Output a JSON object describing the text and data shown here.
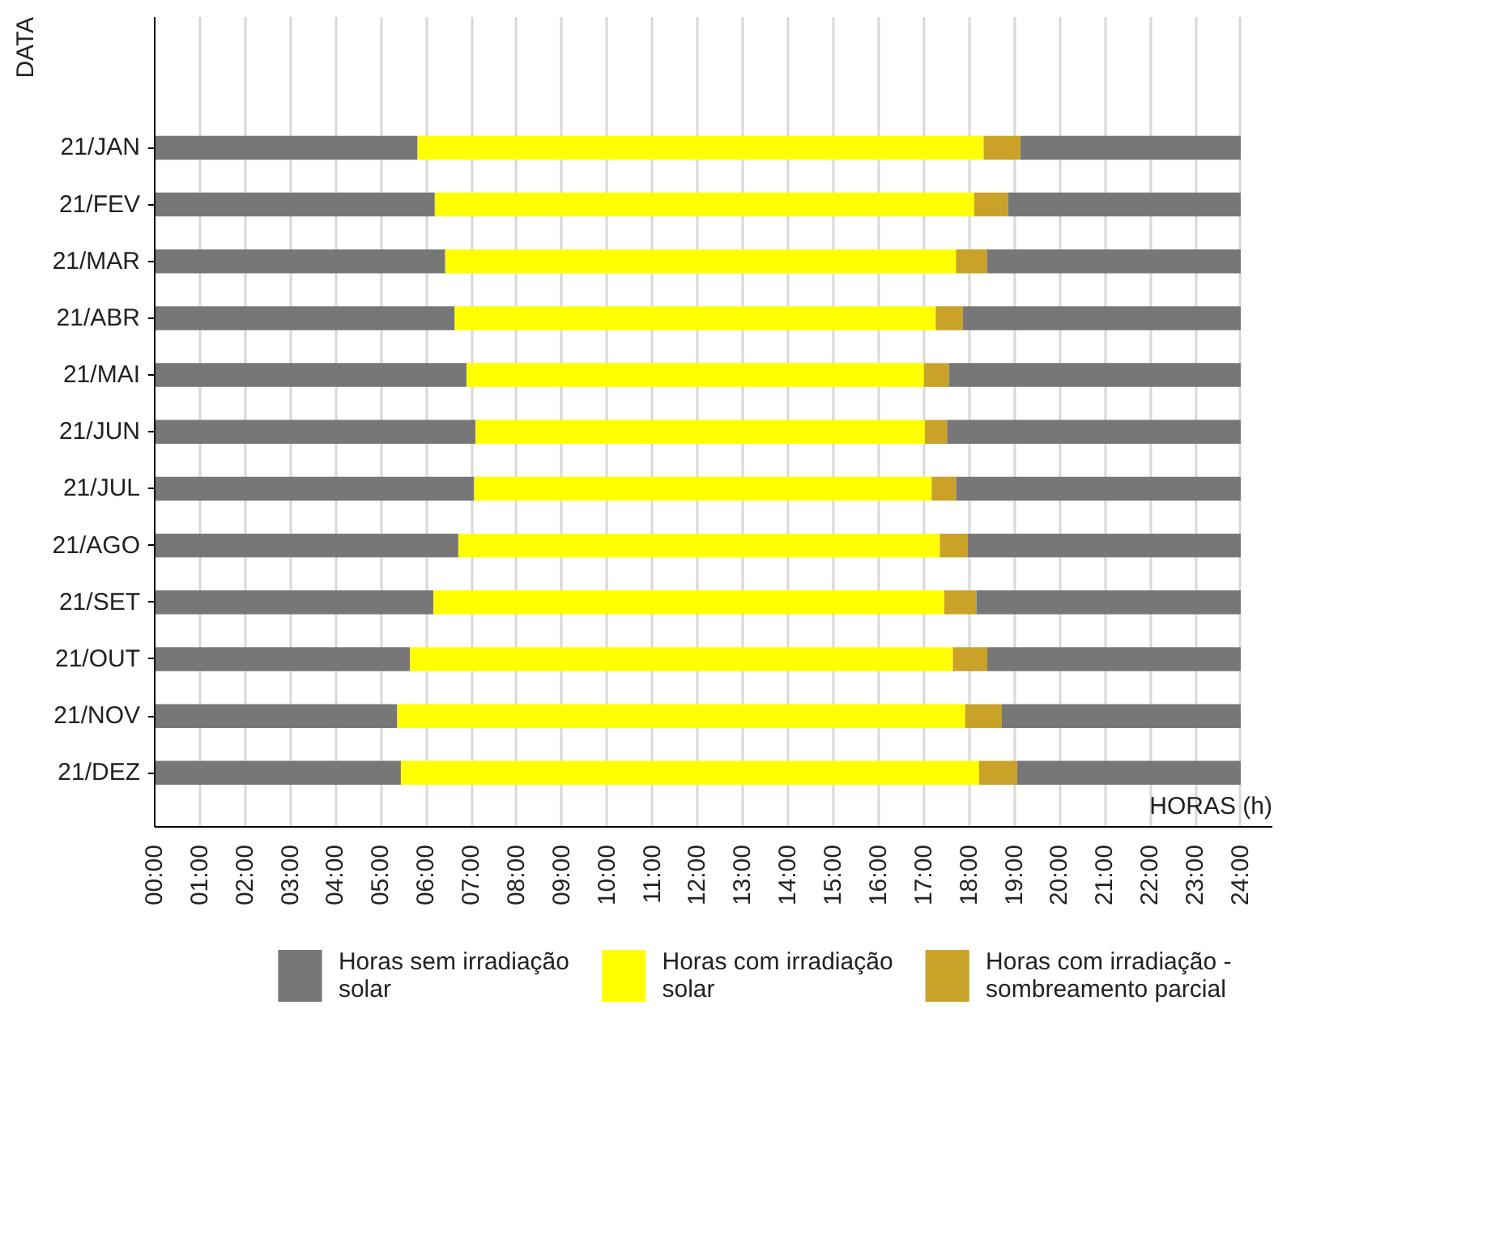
{
  "chart_data": {
    "type": "bar",
    "orientation": "horizontal",
    "stacked": true,
    "xlabel": "HORAS (h)",
    "ylabel": "DATA",
    "categories": [
      "21/JAN",
      "21/FEV",
      "21/MAR",
      "21/ABR",
      "21/MAI",
      "21/JUN",
      "21/JUL",
      "21/AGO",
      "21/SET",
      "21/OUT",
      "21/NOV",
      "21/DEZ"
    ],
    "series": [
      {
        "name": "Horas sem irradiação solar",
        "color": "#777777",
        "values": [
          5.81,
          6.19,
          6.42,
          6.63,
          6.89,
          7.09,
          7.06,
          6.71,
          6.16,
          5.64,
          5.36,
          5.44
        ]
      },
      {
        "name": "Horas com irradiação solar",
        "color": "#ffff00",
        "values": [
          12.51,
          11.92,
          11.29,
          10.63,
          10.11,
          9.93,
          10.11,
          10.64,
          11.29,
          12.0,
          12.55,
          12.78
        ]
      },
      {
        "name": "Horas com irradiação - sombreamento parcial",
        "color": "#c9a227",
        "values": [
          0.81,
          0.75,
          0.68,
          0.6,
          0.55,
          0.49,
          0.54,
          0.62,
          0.71,
          0.76,
          0.81,
          0.84
        ]
      },
      {
        "color": "#777777",
        "values": [
          4.87,
          5.14,
          5.61,
          6.14,
          6.45,
          6.49,
          6.29,
          6.03,
          5.84,
          5.6,
          5.28,
          4.94
        ]
      }
    ],
    "xlim": [
      0,
      24.7
    ],
    "xticks": [
      {
        "value": 0,
        "label": "00:00"
      },
      {
        "value": 1,
        "label": "01:00"
      },
      {
        "value": 2,
        "label": "02:00"
      },
      {
        "value": 3,
        "label": "03:00"
      },
      {
        "value": 4,
        "label": "04:00"
      },
      {
        "value": 5,
        "label": "05:00"
      },
      {
        "value": 6,
        "label": "06:00"
      },
      {
        "value": 7,
        "label": "07:00"
      },
      {
        "value": 8,
        "label": "08:00"
      },
      {
        "value": 9,
        "label": "09:00"
      },
      {
        "value": 10,
        "label": "10:00"
      },
      {
        "value": 11,
        "label": "11:00"
      },
      {
        "value": 12,
        "label": "12:00"
      },
      {
        "value": 13,
        "label": "13:00"
      },
      {
        "value": 14,
        "label": "14:00"
      },
      {
        "value": 15,
        "label": "15:00"
      },
      {
        "value": 16,
        "label": "16:00"
      },
      {
        "value": 17,
        "label": "17:00"
      },
      {
        "value": 18,
        "label": "18:00"
      },
      {
        "value": 19,
        "label": "19:00"
      },
      {
        "value": 20,
        "label": "20:00"
      },
      {
        "value": 21,
        "label": "21:00"
      },
      {
        "value": 22,
        "label": "22:00"
      },
      {
        "value": 23,
        "label": "23:00"
      },
      {
        "value": 24,
        "label": "24:00"
      }
    ],
    "grid": "x",
    "legend": "bottom"
  }
}
